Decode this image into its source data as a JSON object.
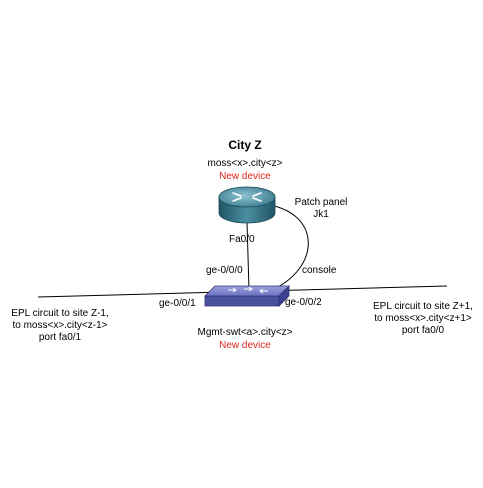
{
  "site": {
    "title": "City Z",
    "router_hostname": "moss<x>.city<z>",
    "router_status": "New device",
    "patch_panel_line1": "Patch panel",
    "patch_panel_line2": "Jk1",
    "router_port": "Fa0/0",
    "switch_uplink_port": "ge-0/0/0",
    "console_label": "console",
    "switch_port_left": "ge-0/0/1",
    "switch_port_right": "ge-0/0/2",
    "switch_hostname": "Mgmt-swt<a>.city<z>",
    "switch_status": "New device"
  },
  "circuits": {
    "left": {
      "line1": "EPL circuit to site Z-1,",
      "line2": "to moss<x>.city<z-1>",
      "line3": "port fa0/1"
    },
    "right": {
      "line1": "EPL circuit to site Z+1,",
      "line2": "to moss<x>.city<z+1>",
      "line3": "port fa0/0"
    }
  },
  "icons": {
    "router": "router-icon",
    "switch": "switch-icon"
  },
  "colors": {
    "new_device": "#e1261c",
    "router_body": "#2f6e80",
    "switch_body": "#5b62b0"
  }
}
